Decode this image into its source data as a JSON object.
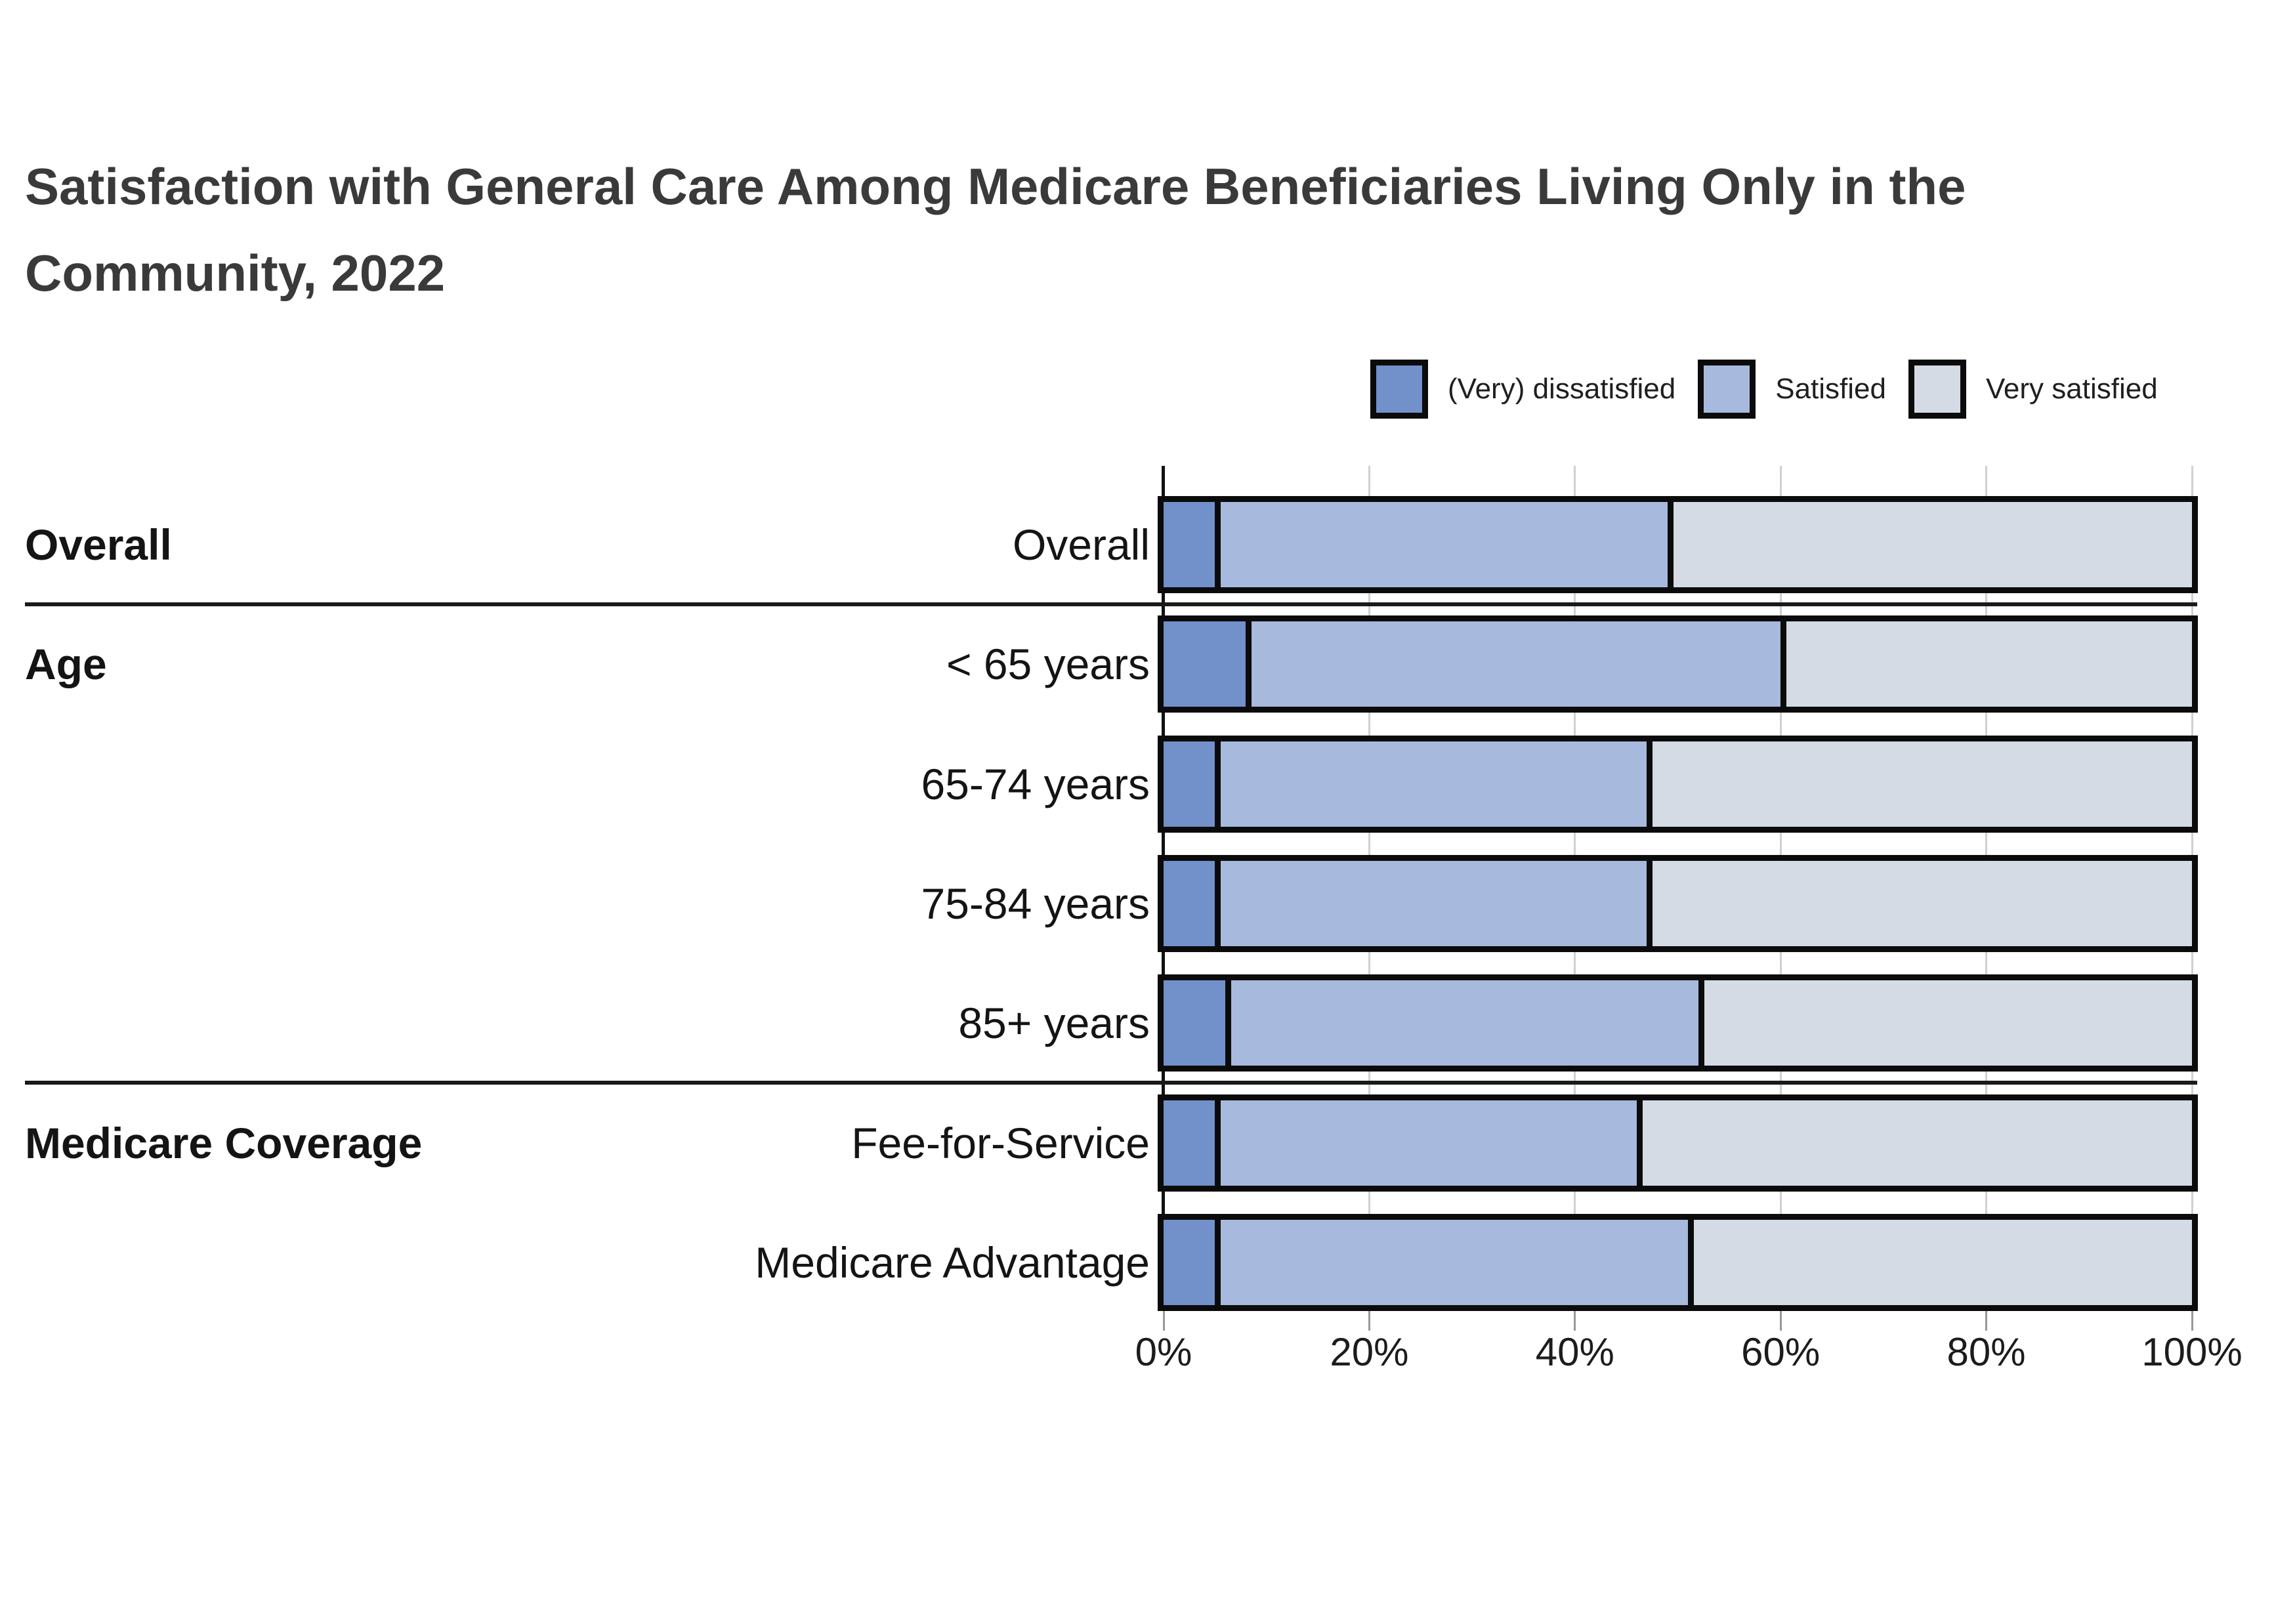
{
  "title": "Satisfaction with General Care Among Medicare Beneficiaries Living Only in the Community, 2022",
  "colors": {
    "dissatisfied": "#7291CA",
    "satisfied": "#A7B9DC",
    "very_satisfied": "#D4DBE5",
    "grid": "#D0D0D0",
    "axis": "#111111",
    "bar_border": "#0B0B0B",
    "title_text": "#3A3A3A",
    "label_text": "#141414"
  },
  "legend": {
    "items": [
      {
        "label": "(Very) dissatisfied",
        "key": "dissatisfied"
      },
      {
        "label": "Satisfied",
        "key": "satisfied"
      },
      {
        "label": "Very satisfied",
        "key": "very_satisfied"
      }
    ]
  },
  "chart_data": {
    "type": "bar",
    "orientation": "horizontal",
    "stacked": true,
    "unit": "percent",
    "series": [
      "(Very) dissatisfied",
      "Satisfied",
      "Very satisfied"
    ],
    "xlim": [
      0,
      100
    ],
    "x_tick_labels": [
      "0%",
      "20%",
      "40%",
      "60%",
      "80%",
      "100%"
    ],
    "x_tick_values": [
      0,
      20,
      40,
      60,
      80,
      100
    ],
    "grid": true,
    "legend_position": "top-right",
    "groups": [
      {
        "label": "Overall",
        "rows": [
          {
            "label": "Overall",
            "dissatisfied": 5,
            "satisfied": 44,
            "very_satisfied": 51
          }
        ]
      },
      {
        "label": "Age",
        "rows": [
          {
            "label": "< 65 years",
            "dissatisfied": 8,
            "satisfied": 52,
            "very_satisfied": 40
          },
          {
            "label": "65-74 years",
            "dissatisfied": 5,
            "satisfied": 42,
            "very_satisfied": 53
          },
          {
            "label": "75-84 years",
            "dissatisfied": 5,
            "satisfied": 42,
            "very_satisfied": 53
          },
          {
            "label": "85+ years",
            "dissatisfied": 6,
            "satisfied": 46,
            "very_satisfied": 48
          }
        ]
      },
      {
        "label": "Medicare Coverage",
        "rows": [
          {
            "label": "Fee-for-Service",
            "dissatisfied": 5,
            "satisfied": 41,
            "very_satisfied": 54
          },
          {
            "label": "Medicare Advantage",
            "dissatisfied": 5,
            "satisfied": 46,
            "very_satisfied": 49
          }
        ]
      }
    ]
  }
}
